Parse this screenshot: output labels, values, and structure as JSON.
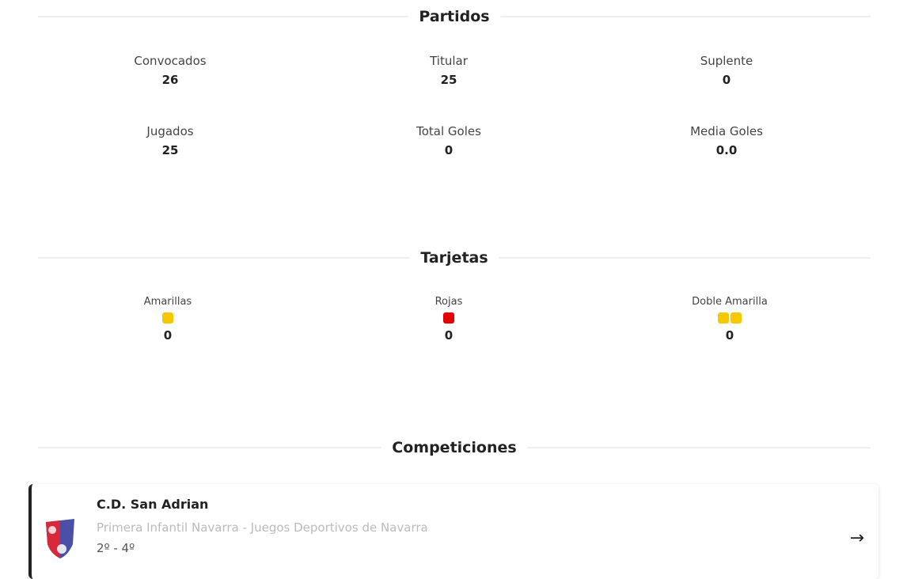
{
  "partidos": {
    "title": "Partidos",
    "stats": [
      {
        "label": "Convocados",
        "value": "26"
      },
      {
        "label": "Titular",
        "value": "25"
      },
      {
        "label": "Suplente",
        "value": "0"
      },
      {
        "label": "Jugados",
        "value": "25"
      },
      {
        "label": "Total Goles",
        "value": "0"
      },
      {
        "label": "Media Goles",
        "value": "0.0"
      }
    ]
  },
  "tarjetas": {
    "title": "Tarjetas",
    "cards": [
      {
        "label": "Amarillas",
        "value": "0",
        "color": "#f5c800"
      },
      {
        "label": "Rojas",
        "value": "0",
        "color": "#e60000"
      },
      {
        "label": "Doble Amarilla",
        "value": "0",
        "color": "#f5c800"
      }
    ]
  },
  "competiciones": {
    "title": "Competiciones",
    "items": [
      {
        "team": "C.D. San Adrian",
        "competition": "Primera Infantil Navarra - Juegos Deportivos de Navarra",
        "position": "2º - 4º",
        "icon": "arrow-right-icon"
      }
    ]
  }
}
